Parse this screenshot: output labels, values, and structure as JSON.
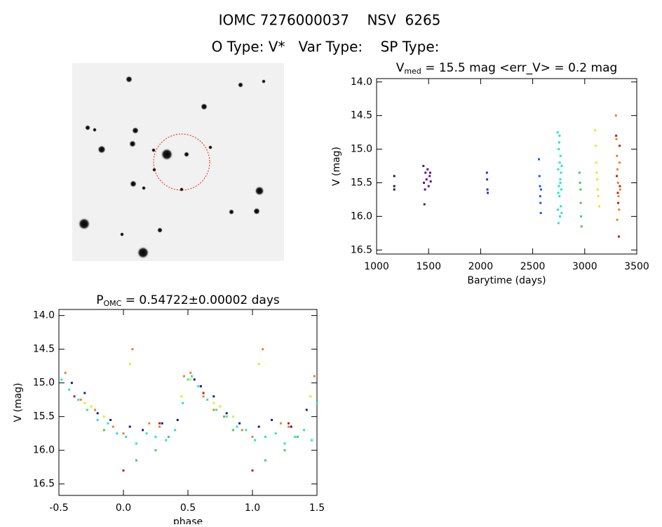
{
  "header": {
    "title": "IOMC 7276000037    NSV  6265",
    "subtitle": "O Type: V*   Var Type:    SP Type:"
  },
  "chart_data": [
    {
      "type": "scatter",
      "title": [
        "V",
        "med",
        " = 15.5 mag <err_V> = 0.2 mag"
      ],
      "xlabel": "Barytime (days)",
      "ylabel": "V (mag)",
      "xlim": [
        1000,
        3500
      ],
      "xticks": [
        1000,
        1500,
        2000,
        2500,
        3000,
        3500
      ],
      "ylim": [
        16.56,
        13.95
      ],
      "yticks": [
        {
          "value": 14,
          "label": "14.0"
        },
        14.5,
        {
          "value": 15,
          "label": "15.0"
        },
        15.5,
        {
          "value": 16,
          "label": "16.0"
        },
        16.5
      ],
      "series": [
        {
          "color": "#1a1a4a",
          "x": [
            1170,
            1170,
            1170
          ],
          "values": [
            15.4,
            15.55,
            15.6
          ]
        },
        {
          "color": "#5b0f8c",
          "x": [
            1450,
            1455,
            1460,
            1465,
            1470,
            1480,
            1490,
            1500,
            1510,
            1515,
            1520
          ],
          "values": [
            15.25,
            15.5,
            15.82,
            15.6,
            15.35,
            15.45,
            15.3,
            15.55,
            15.4,
            15.35,
            15.48
          ]
        },
        {
          "color": "#3232b4",
          "x": [
            2060,
            2062,
            2065,
            2068
          ],
          "values": [
            15.35,
            15.45,
            15.6,
            15.65
          ]
        },
        {
          "color": "#1e5af0",
          "x": [
            2560,
            2565,
            2570,
            2572,
            2575,
            2578,
            2580
          ],
          "values": [
            15.15,
            15.4,
            15.55,
            15.7,
            15.8,
            15.95,
            15.6
          ]
        },
        {
          "color": "#20e8c8",
          "x": [
            2740,
            2742,
            2745,
            2748,
            2750,
            2752,
            2755,
            2757,
            2760,
            2762,
            2765,
            2768,
            2770,
            2772,
            2775,
            2778,
            2780,
            2746,
            2758,
            2766
          ],
          "values": [
            14.75,
            15.9,
            15.3,
            16.1,
            15.0,
            15.55,
            14.9,
            15.7,
            15.2,
            16.0,
            15.45,
            15.1,
            15.85,
            15.35,
            15.6,
            15.95,
            15.25,
            15.65,
            14.8,
            15.5
          ]
        },
        {
          "color": "#40d050",
          "x": [
            2950,
            2955,
            2960,
            2962,
            2965,
            2970
          ],
          "values": [
            15.35,
            15.5,
            15.6,
            15.8,
            16.0,
            16.15
          ]
        },
        {
          "color": "#e8e820",
          "x": [
            3100,
            3105,
            3110,
            3115,
            3120,
            3125,
            3130,
            3140
          ],
          "values": [
            14.72,
            14.95,
            15.2,
            15.35,
            15.45,
            15.6,
            15.7,
            15.85
          ]
        },
        {
          "color": "#f08020",
          "x": [
            3300,
            3305,
            3310,
            3315,
            3320,
            3325,
            3330,
            3335,
            3340,
            3312
          ],
          "values": [
            14.5,
            14.85,
            15.1,
            15.3,
            15.5,
            15.7,
            15.9,
            15.2,
            15.6,
            16.05
          ]
        },
        {
          "color": "#c02010",
          "x": [
            3302,
            3308,
            3318,
            3322,
            3328,
            3336,
            3338
          ],
          "values": [
            14.8,
            15.4,
            15.65,
            15.8,
            16.3,
            14.95,
            15.55
          ]
        }
      ]
    },
    {
      "type": "scatter",
      "title": [
        "P",
        "OMC",
        " = 0.54722±0.00002 days"
      ],
      "xlabel": "phase",
      "ylabel": "V (mag)",
      "xlim": [
        -0.5,
        1.5
      ],
      "xticks": [
        -0.5,
        {
          "value": 0,
          "label": "0.0"
        },
        0.5,
        {
          "value": 1,
          "label": "1.0"
        },
        1.5
      ],
      "ylim": [
        16.67,
        13.91
      ],
      "yticks": [
        {
          "value": 14,
          "label": "14.0"
        },
        14.5,
        {
          "value": 15,
          "label": "15.0"
        },
        15.5,
        {
          "value": 16,
          "label": "16.0"
        },
        16.5
      ],
      "series": [
        {
          "color": "#20e8c8",
          "x": [
            -0.48,
            -0.42,
            -0.35,
            -0.28,
            -0.2,
            -0.12,
            -0.05,
            0.02,
            0.1,
            0.18,
            0.25,
            0.33,
            0.4,
            0.46,
            0.5,
            0.53,
            0.58,
            0.65,
            0.72,
            0.8,
            0.88,
            0.95,
            1.02,
            1.1,
            1.18,
            1.25,
            1.33,
            1.4,
            1.46,
            1.5
          ],
          "values": [
            14.95,
            15.1,
            15.25,
            15.4,
            15.55,
            15.6,
            15.75,
            15.8,
            15.9,
            15.75,
            15.8,
            15.85,
            15.7,
            15.3,
            14.95,
            14.9,
            15.05,
            15.25,
            15.4,
            15.5,
            15.65,
            15.7,
            15.85,
            15.8,
            15.75,
            15.9,
            15.8,
            15.7,
            15.85,
            15.3
          ]
        },
        {
          "color": "#1a1a8a",
          "x": [
            -0.4,
            -0.3,
            -0.2,
            -0.1,
            0.05,
            0.15,
            0.3,
            0.42,
            0.55,
            0.6,
            0.7,
            0.8,
            0.9,
            1.05,
            1.15,
            1.3,
            1.42
          ],
          "values": [
            15.0,
            15.15,
            15.45,
            15.55,
            15.65,
            15.7,
            15.6,
            15.55,
            14.95,
            15.05,
            15.2,
            15.45,
            15.6,
            15.65,
            15.55,
            15.65,
            15.4
          ]
        },
        {
          "color": "#f08020",
          "x": [
            -0.45,
            -0.33,
            -0.22,
            -0.08,
            0.0,
            0.07,
            0.2,
            0.28,
            0.47,
            0.52,
            0.62,
            0.7,
            0.78,
            0.92,
            1.0,
            1.08,
            1.22,
            1.28,
            1.48
          ],
          "values": [
            14.85,
            15.25,
            15.4,
            15.65,
            15.75,
            14.5,
            15.6,
            15.65,
            14.9,
            14.85,
            15.2,
            15.4,
            15.5,
            15.7,
            15.8,
            14.5,
            15.6,
            15.65,
            14.9
          ]
        },
        {
          "color": "#c02010",
          "x": [
            -0.38,
            0.0,
            0.28,
            0.62,
            1.0,
            1.28
          ],
          "values": [
            15.2,
            16.3,
            15.6,
            15.15,
            16.3,
            15.6
          ]
        },
        {
          "color": "#e8e820",
          "x": [
            -0.3,
            -0.25,
            -0.15,
            0.05,
            0.45,
            0.52,
            0.7,
            0.75,
            0.85,
            1.05,
            1.45
          ],
          "values": [
            15.3,
            15.35,
            15.5,
            14.72,
            15.2,
            14.95,
            15.3,
            15.35,
            15.5,
            14.72,
            15.2
          ]
        },
        {
          "color": "#40d050",
          "x": [
            -0.15,
            0.1,
            0.25,
            0.35,
            0.85,
            1.1,
            1.25,
            1.35
          ],
          "values": [
            15.7,
            16.15,
            16.0,
            15.8,
            15.7,
            16.15,
            16.0,
            15.8
          ]
        }
      ]
    }
  ]
}
